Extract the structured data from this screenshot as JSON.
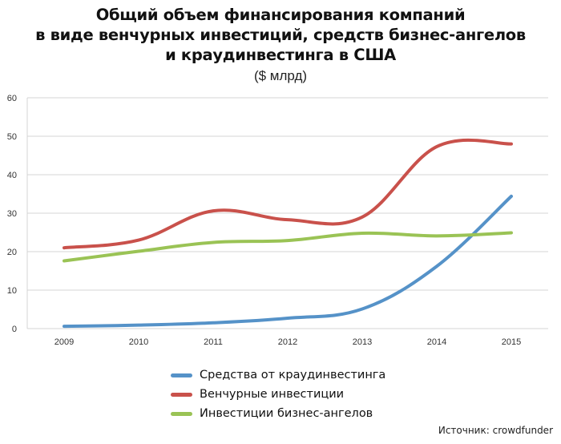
{
  "colors": {
    "crowd": "#5592c8",
    "venture": "#c9514b",
    "angels": "#9ac355",
    "grid": "#d4d4d4"
  },
  "chart_data": {
    "type": "line",
    "title": "Общий объем финансирования компаний\nв виде венчурных инвестиций, средств бизнес-ангелов\nи краудинвестинга в США",
    "subtitle": "($ млрд)",
    "categories": [
      "2009",
      "2010",
      "2011",
      "2012",
      "2013",
      "2014",
      "2015"
    ],
    "y_ticks": [
      "0",
      "10",
      "20",
      "30",
      "40",
      "50",
      "60"
    ],
    "ylim": [
      0,
      60
    ],
    "grid": true,
    "legend_position": "bottom",
    "series": [
      {
        "name": "Средства от краудинвестинга",
        "color": "#5592c8",
        "values": [
          0.6,
          0.9,
          1.5,
          2.7,
          5.1,
          16.2,
          34.4
        ]
      },
      {
        "name": "Венчурные инвестиции",
        "color": "#c9514b",
        "values": [
          21.0,
          23.0,
          30.6,
          28.3,
          29.0,
          47.3,
          48.0
        ]
      },
      {
        "name": "Инвестиции бизнес-ангелов",
        "color": "#9ac355",
        "values": [
          17.6,
          20.1,
          22.4,
          22.9,
          24.8,
          24.1,
          24.9
        ]
      }
    ],
    "source": "Источник: crowdfunder"
  }
}
